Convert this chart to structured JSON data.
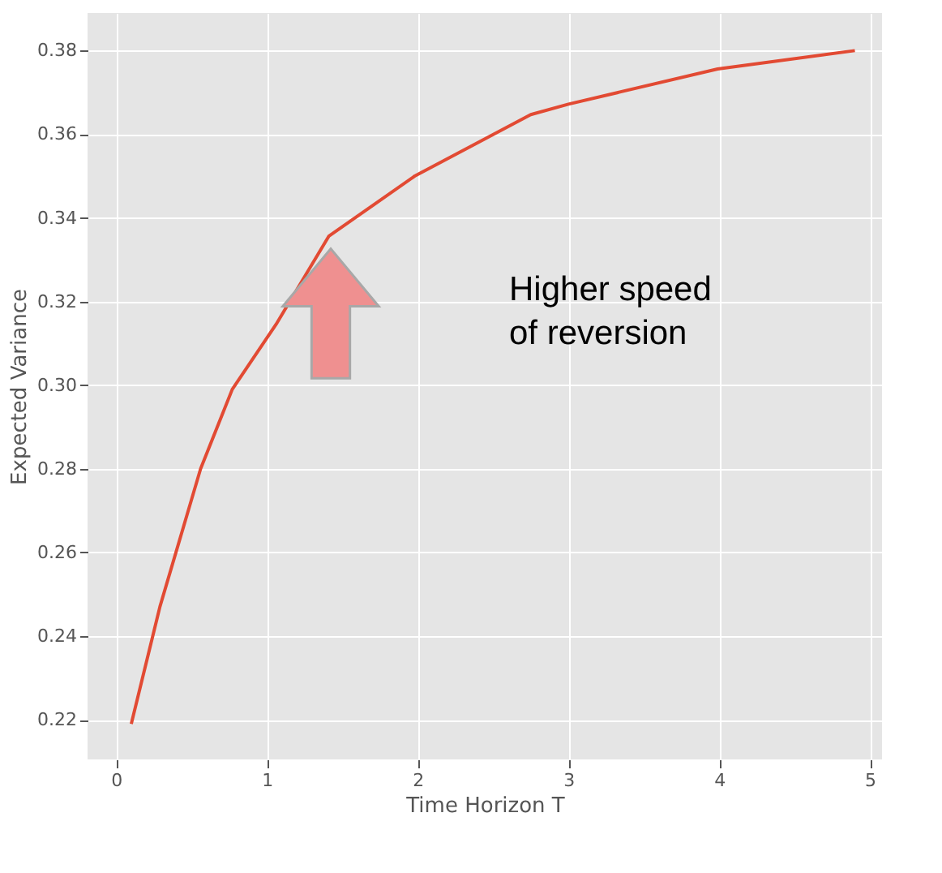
{
  "chart_data": {
    "type": "line",
    "xlabel": "Time Horizon T",
    "ylabel": "Expected Variance",
    "x": [
      0.1,
      0.29,
      0.56,
      0.77,
      1.06,
      1.41,
      1.98,
      2.75,
      3.0,
      3.99,
      4.9
    ],
    "series": [
      {
        "color": "#e24a33",
        "values": [
          0.219,
          0.247,
          0.28,
          0.299,
          0.3145,
          0.3356,
          0.35,
          0.3647,
          0.3672,
          0.3756,
          0.38
        ]
      }
    ],
    "xlim": [
      -0.19,
      5.08
    ],
    "ylim": [
      0.2105,
      0.389
    ],
    "xticks": [
      0,
      1,
      2,
      3,
      4,
      5
    ],
    "yticks": [
      {
        "value": 0.22,
        "label": "0.22"
      },
      {
        "value": 0.24,
        "label": "0.24"
      },
      {
        "value": 0.26,
        "label": "0.26"
      },
      {
        "value": 0.28,
        "label": "0.28"
      },
      {
        "value": 0.3,
        "label": "0.30"
      },
      {
        "value": 0.32,
        "label": "0.32"
      },
      {
        "value": 0.34,
        "label": "0.34"
      },
      {
        "value": 0.36,
        "label": "0.36"
      },
      {
        "value": 0.38,
        "label": "0.38"
      }
    ],
    "grid": true,
    "marker": "none",
    "line_style": "solid",
    "annotations": [
      "Higher speed\nof reversion"
    ]
  }
}
